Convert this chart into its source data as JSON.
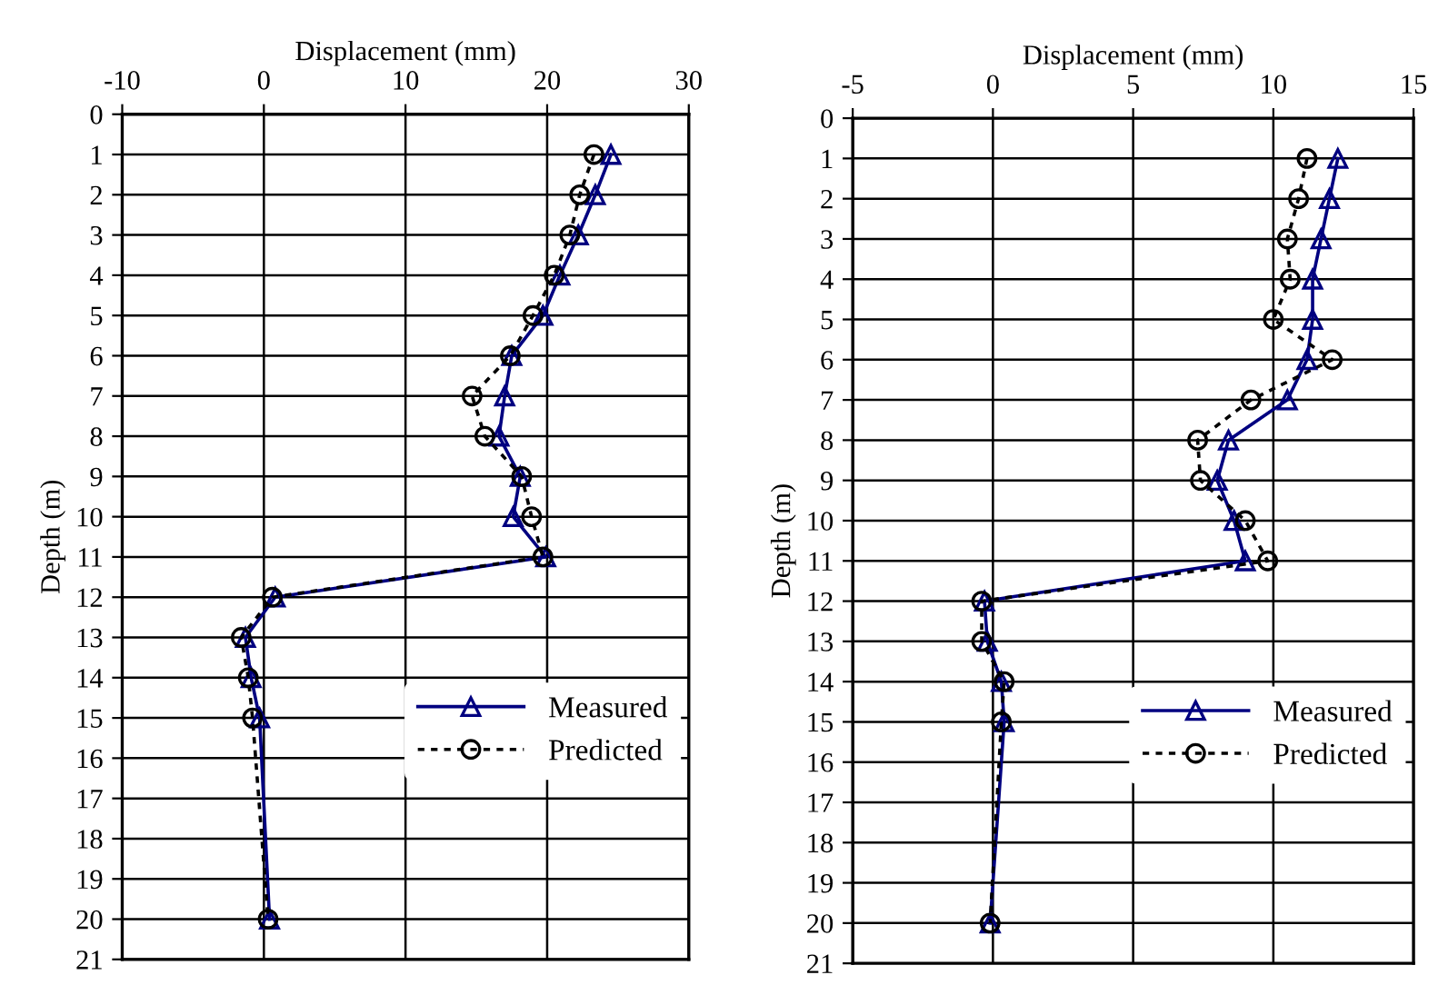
{
  "chart_data": [
    {
      "type": "line",
      "orientation": "horizontal",
      "xlabel": "Displacement (mm)",
      "ylabel": "Depth (m)",
      "x": [
        1,
        2,
        3,
        4,
        5,
        6,
        7,
        8,
        9,
        10,
        11,
        12,
        13,
        14,
        15,
        20
      ],
      "series": [
        {
          "name": "Measured",
          "color": "#000080",
          "marker": "triangle",
          "line_style": "solid",
          "values": [
            24.5,
            23.4,
            22.2,
            20.9,
            19.7,
            17.5,
            17.0,
            16.6,
            18.1,
            17.6,
            19.9,
            0.8,
            -1.3,
            -0.9,
            -0.3,
            0.4
          ]
        },
        {
          "name": "Predicted",
          "color": "#000000",
          "marker": "circle",
          "line_style": "dotted",
          "values": [
            23.3,
            22.3,
            21.6,
            20.5,
            19.0,
            17.4,
            14.7,
            15.6,
            18.2,
            18.9,
            19.7,
            0.6,
            -1.6,
            -1.1,
            -0.8,
            0.3
          ]
        }
      ],
      "xlim": [
        -10,
        30
      ],
      "xticks": [
        -10,
        0,
        10,
        20,
        30
      ],
      "ylim": [
        21,
        0
      ],
      "yticks": [
        0,
        1,
        2,
        3,
        4,
        5,
        6,
        7,
        8,
        9,
        10,
        11,
        12,
        13,
        14,
        15,
        16,
        17,
        18,
        19,
        20,
        21
      ],
      "grid": true,
      "legend": "right"
    },
    {
      "type": "line",
      "orientation": "horizontal",
      "xlabel": "Displacement (mm)",
      "ylabel": "Depth (m)",
      "x": [
        1,
        2,
        3,
        4,
        5,
        6,
        7,
        8,
        9,
        10,
        11,
        12,
        13,
        14,
        15,
        20
      ],
      "series": [
        {
          "name": "Measured",
          "color": "#000080",
          "marker": "triangle",
          "line_style": "solid",
          "values": [
            12.3,
            12.0,
            11.7,
            11.4,
            11.4,
            11.2,
            10.5,
            8.4,
            8.0,
            8.6,
            9.0,
            -0.3,
            -0.2,
            0.3,
            0.4,
            -0.1
          ]
        },
        {
          "name": "Predicted",
          "color": "#000000",
          "marker": "circle",
          "line_style": "dotted",
          "values": [
            11.2,
            10.9,
            10.5,
            10.6,
            10.0,
            12.1,
            9.2,
            7.3,
            7.4,
            9.0,
            9.8,
            -0.4,
            -0.4,
            0.4,
            0.3,
            -0.1
          ]
        }
      ],
      "xlim": [
        -5,
        15
      ],
      "xticks": [
        -5,
        0,
        5,
        10,
        15
      ],
      "ylim": [
        21,
        0
      ],
      "yticks": [
        0,
        1,
        2,
        3,
        4,
        5,
        6,
        7,
        8,
        9,
        10,
        11,
        12,
        13,
        14,
        15,
        16,
        17,
        18,
        19,
        20,
        21
      ],
      "grid": true,
      "legend": "right"
    }
  ]
}
